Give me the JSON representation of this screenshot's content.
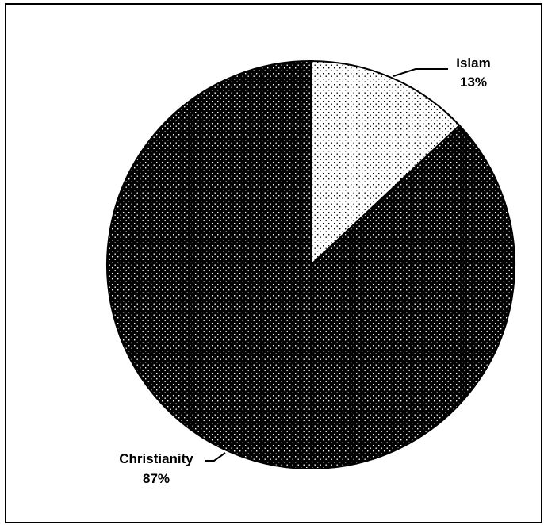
{
  "chart_data": {
    "type": "pie",
    "title": "",
    "slices": [
      {
        "label": "Islam",
        "value": 13,
        "value_label": "13%",
        "fill": "#ffffff",
        "dot_color": "#000000"
      },
      {
        "label": "Christianity",
        "value": 87,
        "value_label": "87%",
        "fill": "#000000",
        "dot_color": "#ffffff"
      }
    ],
    "start_angle_deg": 0,
    "direction": "clockwise",
    "legend": "none",
    "data_labels": "outside with leader lines"
  }
}
